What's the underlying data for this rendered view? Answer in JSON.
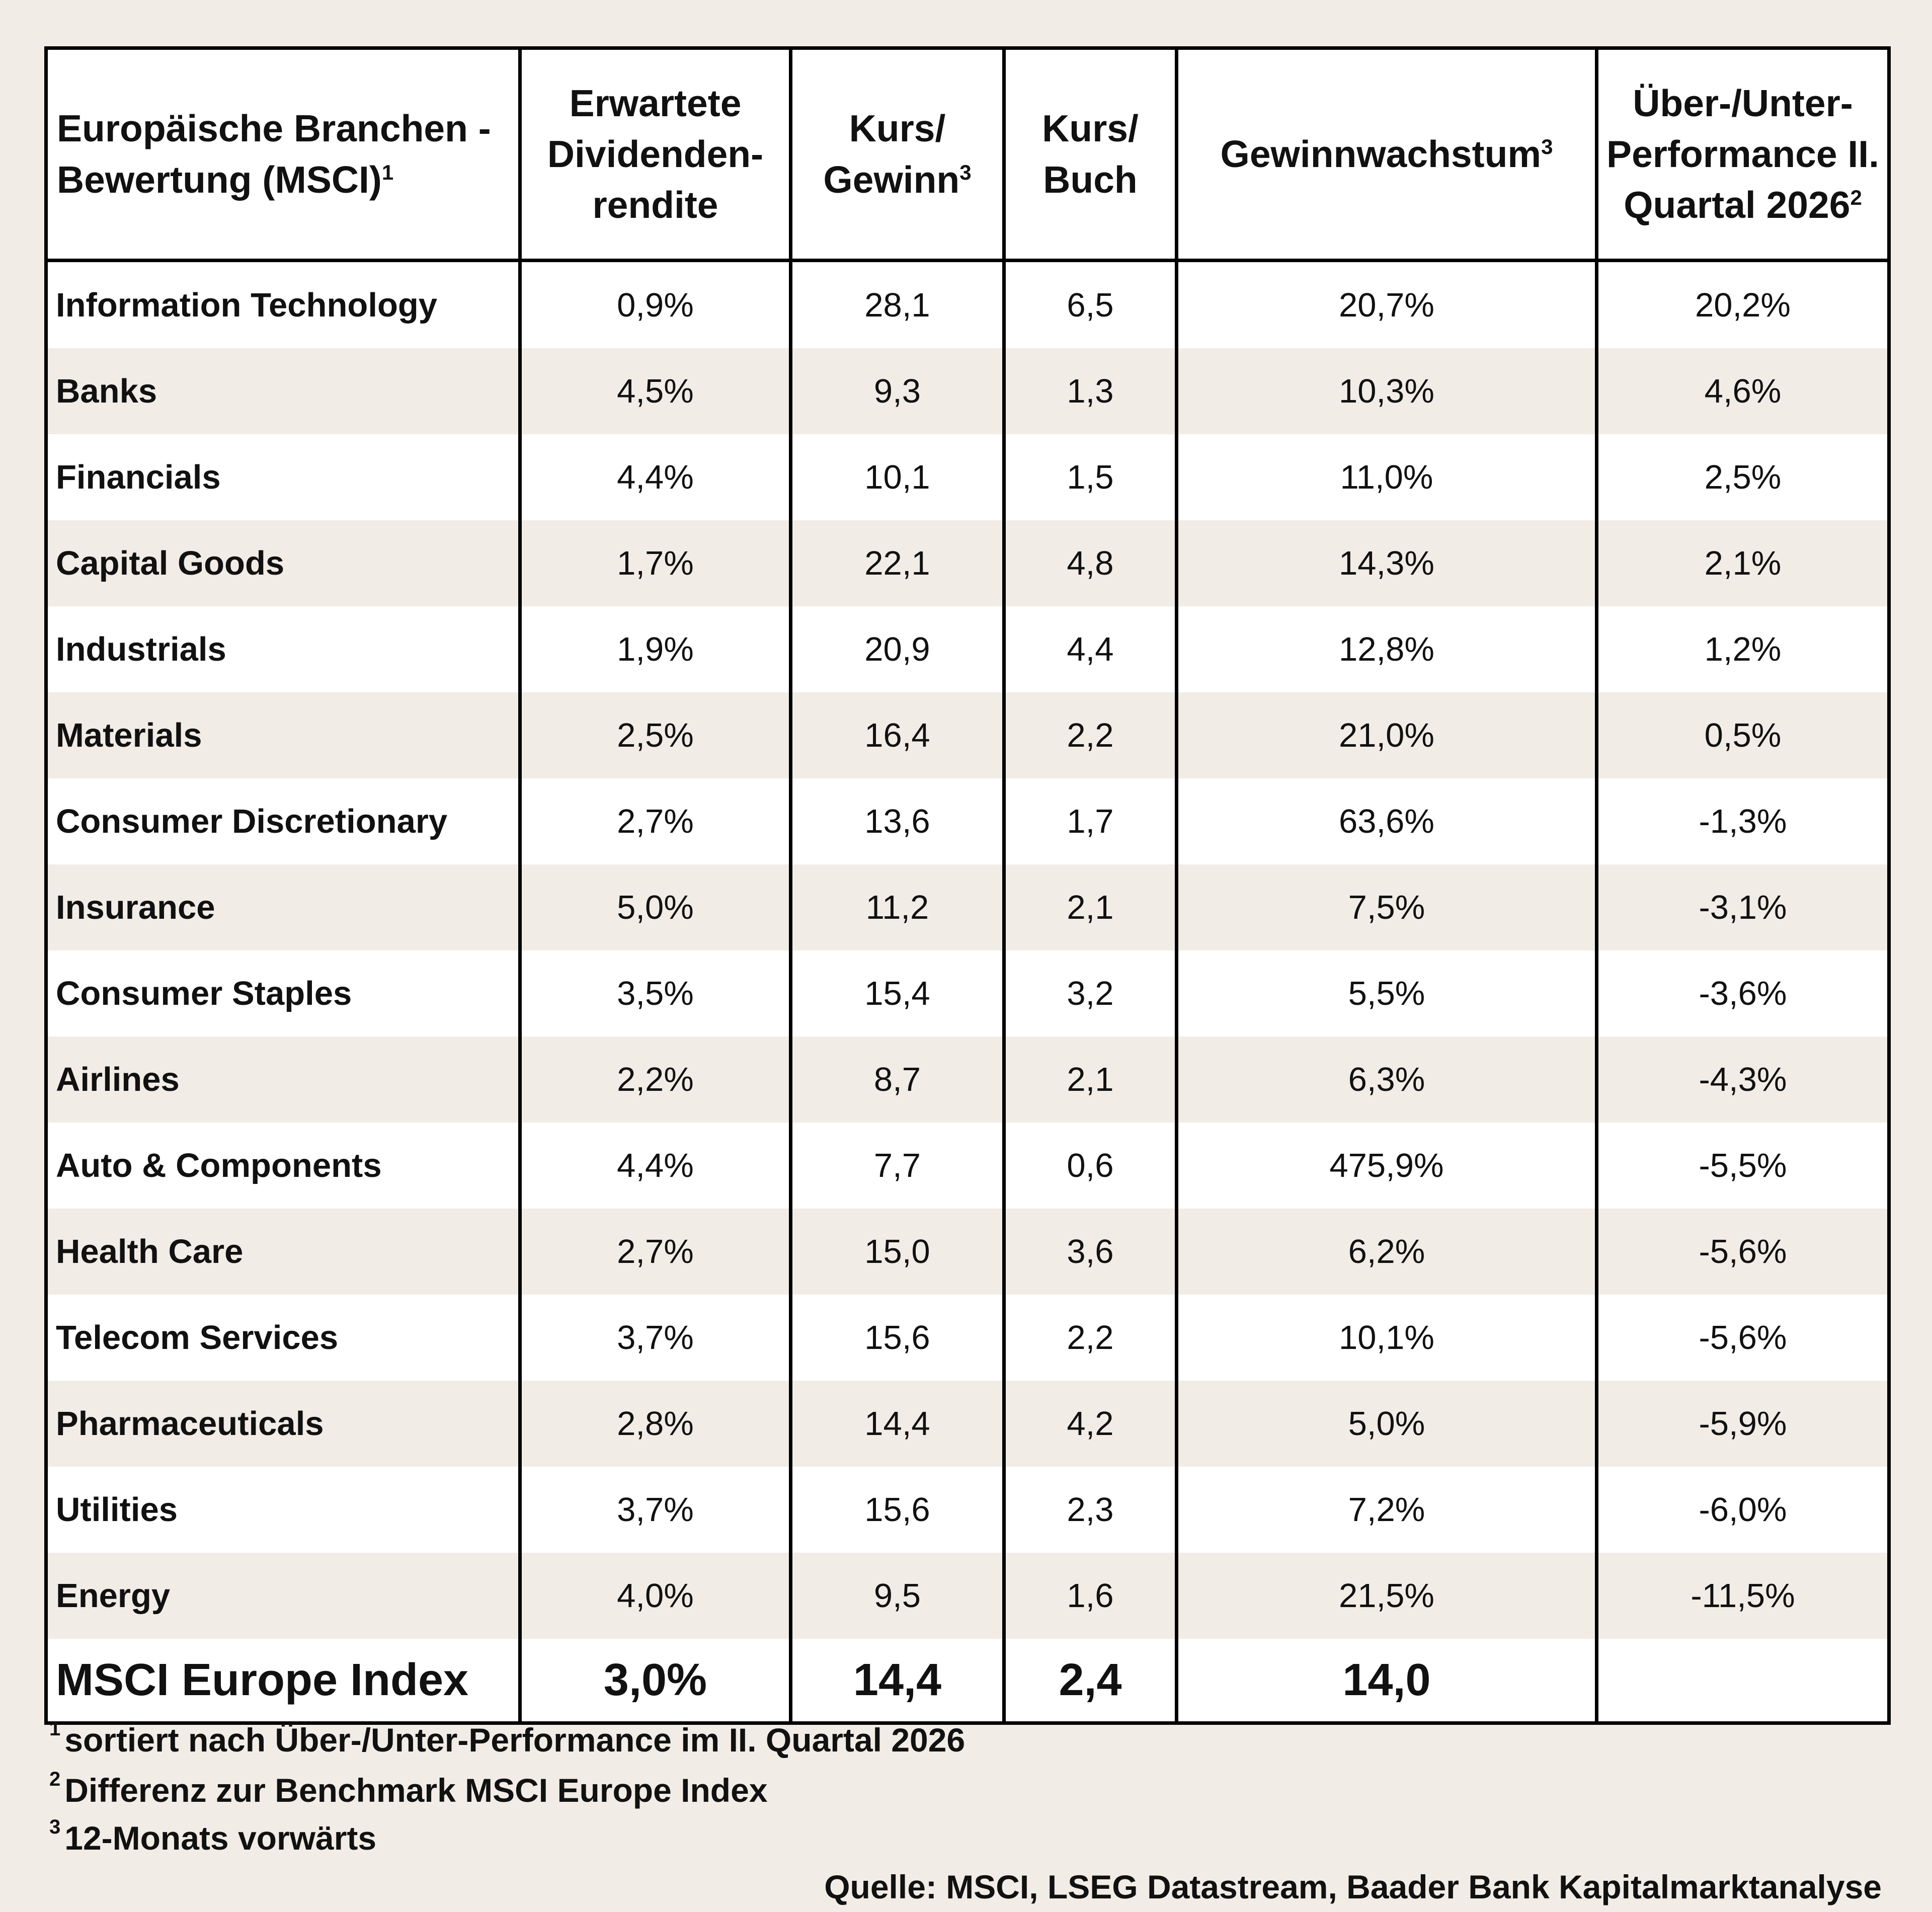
{
  "header": {
    "col1": "Europäische Branchen - Bewertung (MSCI)",
    "col1_sup": "1",
    "col2": "Erwartete Dividenden-rendite",
    "col3": "Kurs/ Gewinn",
    "col3_sup": "3",
    "col4": "Kurs/ Buch",
    "col5": "Gewinnwachstum",
    "col5_sup": "3",
    "col6": "Über-/Unter-Performance II. Quartal 2026",
    "col6_sup": "2"
  },
  "rows": [
    {
      "name": "Information Technology",
      "div": "0,9%",
      "pe": "28,1",
      "pb": "6,5",
      "growth": "20,7%",
      "perf": "20,2%"
    },
    {
      "name": "Banks",
      "div": "4,5%",
      "pe": "9,3",
      "pb": "1,3",
      "growth": "10,3%",
      "perf": "4,6%"
    },
    {
      "name": "Financials",
      "div": "4,4%",
      "pe": "10,1",
      "pb": "1,5",
      "growth": "11,0%",
      "perf": "2,5%"
    },
    {
      "name": "Capital Goods",
      "div": "1,7%",
      "pe": "22,1",
      "pb": "4,8",
      "growth": "14,3%",
      "perf": "2,1%"
    },
    {
      "name": "Industrials",
      "div": "1,9%",
      "pe": "20,9",
      "pb": "4,4",
      "growth": "12,8%",
      "perf": "1,2%"
    },
    {
      "name": "Materials",
      "div": "2,5%",
      "pe": "16,4",
      "pb": "2,2",
      "growth": "21,0%",
      "perf": "0,5%"
    },
    {
      "name": "Consumer Discretionary",
      "div": "2,7%",
      "pe": "13,6",
      "pb": "1,7",
      "growth": "63,6%",
      "perf": "-1,3%"
    },
    {
      "name": "Insurance",
      "div": "5,0%",
      "pe": "11,2",
      "pb": "2,1",
      "growth": "7,5%",
      "perf": "-3,1%"
    },
    {
      "name": "Consumer Staples",
      "div": "3,5%",
      "pe": "15,4",
      "pb": "3,2",
      "growth": "5,5%",
      "perf": "-3,6%"
    },
    {
      "name": "Airlines",
      "div": "2,2%",
      "pe": "8,7",
      "pb": "2,1",
      "growth": "6,3%",
      "perf": "-4,3%"
    },
    {
      "name": "Auto & Components",
      "div": "4,4%",
      "pe": "7,7",
      "pb": "0,6",
      "growth": "475,9%",
      "perf": "-5,5%"
    },
    {
      "name": "Health Care",
      "div": "2,7%",
      "pe": "15,0",
      "pb": "3,6",
      "growth": "6,2%",
      "perf": "-5,6%"
    },
    {
      "name": "Telecom Services",
      "div": "3,7%",
      "pe": "15,6",
      "pb": "2,2",
      "growth": "10,1%",
      "perf": "-5,6%"
    },
    {
      "name": "Pharmaceuticals",
      "div": "2,8%",
      "pe": "14,4",
      "pb": "4,2",
      "growth": "5,0%",
      "perf": "-5,9%"
    },
    {
      "name": "Utilities",
      "div": "3,7%",
      "pe": "15,6",
      "pb": "2,3",
      "growth": "7,2%",
      "perf": "-6,0%"
    },
    {
      "name": "Energy",
      "div": "4,0%",
      "pe": "9,5",
      "pb": "1,6",
      "growth": "21,5%",
      "perf": "-11,5%"
    }
  ],
  "index_row": {
    "name": "MSCI Europe Index",
    "div": "3,0%",
    "pe": "14,4",
    "pb": "2,4",
    "growth": "14,0",
    "perf": ""
  },
  "footnotes": [
    {
      "mark": "1",
      "text": "sortiert nach Über-/Unter-Performance im II. Quartal 2026"
    },
    {
      "mark": "2",
      "text": "Differenz zur Benchmark MSCI Europe Index"
    },
    {
      "mark": "3",
      "text": "12-Monats vorwärts"
    }
  ],
  "source": "Quelle: MSCI, LSEG Datastream, Baader Bank Kapitalmarktanalyse"
}
